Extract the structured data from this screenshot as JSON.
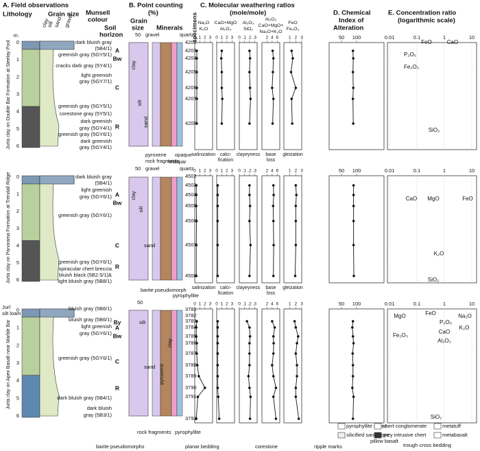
{
  "panels": {
    "a": "A. Field observations",
    "b": [
      "B. Point counting",
      "(%)"
    ],
    "c": [
      "C. Molecular weathering ratios",
      "(mole/mole)"
    ],
    "d": [
      "D. Chemical",
      "Index of",
      "Alteration"
    ],
    "e": [
      "E. Concentration ratio",
      "(logarithmic scale)"
    ]
  },
  "column_heads": {
    "lithology": "Lithology",
    "grain_size": "Grain size",
    "munsell": [
      "Munsell",
      "colour"
    ],
    "horizon": [
      "Soil",
      "horizon"
    ],
    "grain_classes": [
      "clay",
      "silt",
      "sand",
      "gravel"
    ],
    "b_grain": [
      "Grain",
      "size"
    ],
    "b_minerals": "Minerals",
    "specimens": "specimens"
  },
  "ratio_axes": [
    {
      "label": [
        "Na₂O",
        "K₂O"
      ],
      "process": [
        "salinization"
      ],
      "xlim": [
        0,
        3.5
      ],
      "ticks": [
        0,
        1,
        2,
        3
      ]
    },
    {
      "label": [
        "CaO+MgO",
        "Al₂O₃"
      ],
      "process": [
        "calci-",
        "fication"
      ],
      "xlim": [
        0,
        3.5
      ],
      "ticks": [
        0,
        1,
        2,
        3
      ]
    },
    {
      "label": [
        "Al₂O₃",
        "SiO₂"
      ],
      "process": [
        "clayeyness"
      ],
      "xlim": [
        0,
        0.35
      ],
      "ticks": [
        0,
        {
          "value": 0.1,
          "label": ".1"
        },
        {
          "value": 0.2,
          "label": ".2"
        },
        {
          "value": 0.3,
          "label": ".3"
        }
      ]
    },
    {
      "label": [
        "Al₂O₃",
        "CaO+MgO+",
        "Na₂O+K₂O"
      ],
      "process": [
        "base",
        "loss"
      ],
      "xlim": [
        0,
        7
      ],
      "ticks": [
        2,
        4,
        6
      ]
    },
    {
      "label": [
        "FeO",
        "Fe₂O₃"
      ],
      "process": [
        "gleization"
      ],
      "xlim": [
        0,
        3
      ],
      "ticks": [
        1,
        2,
        3
      ]
    }
  ],
  "cia_ticks": [
    50,
    100
  ],
  "e_ticks": [
    0.01,
    0.1,
    1,
    10
  ],
  "profiles": [
    {
      "site": "Jurta clay on Double Bar Formation at Steelay Pool",
      "depth": [
        "m.",
        "0",
        "1",
        "2",
        "3",
        "4",
        "5",
        "6"
      ],
      "munsell": [
        "dark bluish gray",
        "(5B4/1)",
        "greenish gray (5GY5/1)",
        "cracks dark gray (5Y4/1)",
        "light greenish",
        "gray (5GY7/1)",
        "greenish gray (5GY5/1)",
        "corestone gray (5Y5/1)",
        "dark greenish",
        "gray (5GY4/1)",
        "greenish gray (5GY6/1)",
        "dark greenish",
        "gray (5GY4/1)"
      ],
      "horizons": [
        "A",
        "Bw",
        "C",
        "R"
      ],
      "b_labels": [
        "50",
        "gravel",
        "clay",
        "silt",
        "sand",
        "pyroxene",
        "rock fragments",
        "opaque",
        "feldspar",
        "quartz"
      ],
      "specimens": [
        "4202",
        "4203",
        "4204",
        "4205",
        "4206",
        "4207",
        "4208"
      ],
      "ratios": [
        [
          null,
          0.4,
          0.4,
          0.4,
          0.4,
          0.4,
          0.4
        ],
        [
          null,
          1.0,
          0.9,
          1.0,
          1.0,
          1.1,
          1.0
        ],
        [
          null,
          0.2,
          0.21,
          0.2,
          0.21,
          0.22,
          0.2
        ],
        [
          null,
          4.2,
          4.5,
          4.3,
          4.0,
          4.5,
          4.2
        ],
        [
          null,
          1.3,
          1.5,
          1.2,
          2.0,
          1.3,
          1.4
        ]
      ],
      "cia": [
        null,
        88,
        89,
        88,
        89,
        88,
        89
      ],
      "oxides": [
        "FeO",
        "CaO",
        "P₂O₅",
        "Fe₂O₃",
        "SiO₂"
      ]
    },
    {
      "site": "Jurta clay on Panorama Formation at Trendall Ridge",
      "depth": [
        "0",
        "1",
        "2",
        "3",
        "4",
        "5",
        "6"
      ],
      "munsell": [
        "dark bluish gray",
        "(5B4/1)",
        "light greenish",
        "gray (5GY6/1)",
        "greenish gray (5GY6/1)",
        "greenish gray (5GY6/1)",
        "spiracular chert breccia",
        "bluish black (5B2.5/1)&",
        "light bluish gray (5B8/1)"
      ],
      "horizons": [
        "A",
        "Bw",
        "C",
        "R"
      ],
      "b_labels": [
        "50",
        "gravel",
        "quartz",
        "clay",
        "silt",
        "sand",
        "barite pseudomorph",
        "pyrophyllite"
      ],
      "specimens": [
        "4502",
        "4503",
        "4504",
        "4505",
        "4506",
        "4507",
        "4508"
      ],
      "ratios": [
        [
          null,
          0.3,
          0.3,
          0.3,
          0.35,
          0.3,
          0.3
        ],
        [
          null,
          0.2,
          0.2,
          0.2,
          0.2,
          0.2,
          0.2
        ],
        [
          null,
          0.2,
          0.2,
          0.21,
          0.2,
          0.22,
          0.2
        ],
        [
          null,
          4.5,
          4.6,
          4.4,
          4.5,
          4.6,
          4.5
        ],
        [
          null,
          2.0,
          2.1,
          2.0,
          2.0,
          2.0,
          1.9
        ]
      ],
      "cia": [
        null,
        90,
        90,
        90,
        90,
        90,
        91
      ],
      "oxides": [
        "CaO",
        "MgO",
        "FeO",
        "K₂O",
        "SiO₂"
      ]
    },
    {
      "site": "Jurta clay on Apex Basalt near Marble Bar",
      "soil_name": [
        "Jurl",
        "silt loam"
      ],
      "depth": [
        "0",
        "1",
        "2",
        "3",
        "4",
        "5",
        "6"
      ],
      "munsell": [
        "bluish gray (5B6/1)",
        "bluish gray (5B6/1)",
        "light greenish",
        "gray (5GY6/1)",
        "greenish gray (5GY6/1)",
        "dark bluish gray (5B4/1)",
        "dark bluish",
        "gray (5B3/1)"
      ],
      "horizons": [
        "By",
        "A",
        "Bw",
        "C",
        "R"
      ],
      "b_labels": [
        "50",
        "clay",
        "silt",
        "sand",
        "pyroxene",
        "rock fragments",
        "pyrophyllite"
      ],
      "specimens": [
        "3781",
        "3782",
        "3783",
        "3784",
        "3785",
        "3786",
        "3787",
        "3788",
        "3789",
        "3790",
        "3791",
        "3792"
      ],
      "ratios": [
        [
          null,
          null,
          0.4,
          0.3,
          0.3,
          0.4,
          0.4,
          0.5,
          0.8,
          2.0,
          0.6,
          0.3
        ],
        [
          null,
          null,
          0.2,
          0.2,
          0.2,
          0.2,
          0.2,
          0.2,
          0.2,
          0.2,
          0.3,
          0.5
        ],
        [
          null,
          null,
          0.15,
          0.2,
          0.21,
          0.2,
          0.2,
          0.2,
          0.18,
          0.2,
          0.22,
          0.21
        ],
        [
          null,
          null,
          4,
          5,
          4.5,
          4.6,
          4.5,
          4,
          4.5,
          5.5,
          4.5,
          5.5
        ],
        [
          null,
          null,
          1.8,
          2,
          2.4,
          2.2,
          2,
          2.2,
          2.2,
          2,
          2,
          2.5
        ]
      ],
      "cia": [
        null,
        null,
        88,
        86,
        88,
        90,
        87,
        88,
        88,
        86,
        90,
        88
      ],
      "oxides": [
        "MgO",
        "FeO",
        "P₂O₅",
        "Na₂O",
        "K₂O",
        "CaO",
        "Al₂O₃",
        "Fe₂O₃",
        "SiO₂"
      ]
    }
  ],
  "legend": [
    "pyrophyllite schist",
    "chert conglomerate",
    "metatuff",
    "silicified sandstone",
    "grey intrusive chert",
    "metabasalt",
    "pillow basalt",
    "trough cross bedding",
    "barite pseudomorphs",
    "planar bedding",
    "corestone",
    "ripple marks"
  ]
}
